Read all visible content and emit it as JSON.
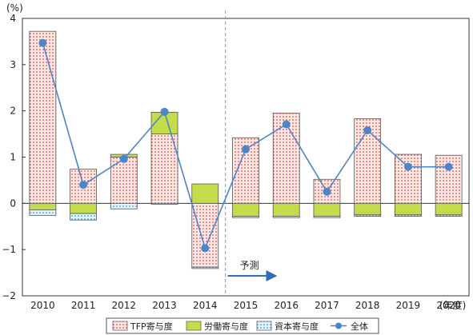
{
  "chart_data": {
    "type": "bar",
    "stacked": true,
    "ylabel": "(%)",
    "xlabel": "(年度)",
    "ylim": [
      -2,
      4
    ],
    "yticks": [
      4,
      3,
      2,
      1,
      0,
      -1,
      -2
    ],
    "ytick_labels": [
      "4",
      "3",
      "2",
      "1",
      "0",
      "−1",
      "−2"
    ],
    "categories": [
      "2010",
      "2011",
      "2012",
      "2013",
      "2014",
      "2015",
      "2016",
      "2017",
      "2018",
      "2019",
      "2020"
    ],
    "series": [
      {
        "name": "TFP寄与度",
        "kind": "bar",
        "color": "#e35d5d",
        "fill": "#fde3dd",
        "values": [
          3.72,
          0.74,
          1.0,
          1.5,
          -1.38,
          1.42,
          1.95,
          0.52,
          1.83,
          1.06,
          1.04
        ]
      },
      {
        "name": "労働寄与度",
        "kind": "bar",
        "color": "#b6d33a",
        "fill": "#c2dc4a",
        "values": [
          -0.14,
          -0.22,
          0.06,
          0.47,
          0.42,
          -0.28,
          -0.28,
          -0.28,
          -0.25,
          -0.25,
          -0.25
        ]
      },
      {
        "name": "資本寄与度",
        "kind": "bar",
        "color": "#4ea3d8",
        "fill": "#d6ecf8",
        "values": [
          -0.12,
          -0.14,
          -0.12,
          -0.02,
          -0.03,
          -0.03,
          -0.03,
          -0.03,
          -0.03,
          -0.03,
          -0.03
        ]
      },
      {
        "name": "全体",
        "kind": "line",
        "color": "#4a86c8",
        "values": [
          3.47,
          0.4,
          0.96,
          1.98,
          -0.97,
          1.17,
          1.71,
          0.25,
          1.58,
          0.79,
          0.79
        ]
      }
    ],
    "annotations": [
      {
        "text": "予測",
        "type": "dashed-divider-with-arrow",
        "between": [
          "2014",
          "2015"
        ]
      }
    ],
    "grid": false,
    "legend_position": "bottom"
  }
}
